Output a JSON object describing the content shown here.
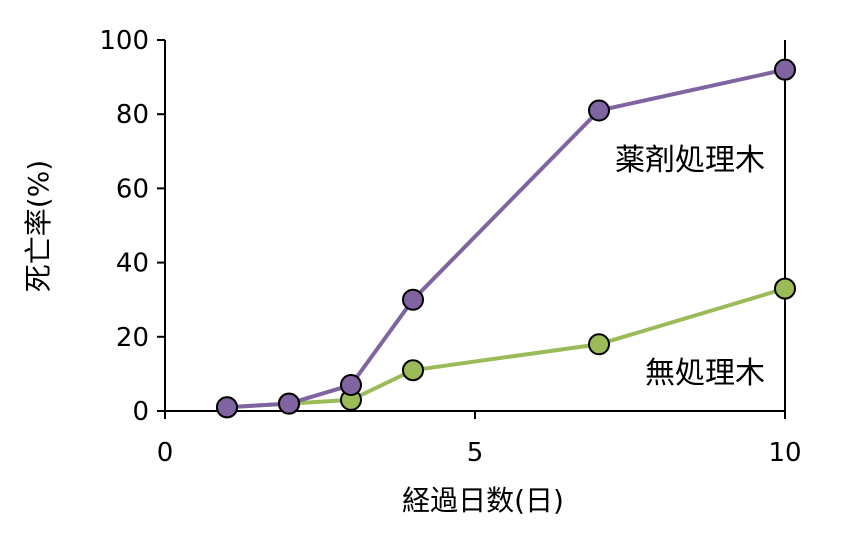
{
  "chart_data": {
    "type": "line",
    "xlabel": "経過日数(日)",
    "ylabel": "死亡率(%)",
    "xlim": [
      0,
      10
    ],
    "ylim": [
      0,
      100
    ],
    "x_ticks": [
      "0",
      "5",
      "10"
    ],
    "y_ticks": [
      "0",
      "20",
      "40",
      "60",
      "80",
      "100"
    ],
    "grid": false,
    "series": [
      {
        "name": "薬剤処理木",
        "color": "#8064a2",
        "x": [
          1,
          2,
          3,
          4,
          7,
          10
        ],
        "y": [
          1,
          2,
          7,
          30,
          81,
          92
        ]
      },
      {
        "name": "無処理木",
        "color": "#9bbb59",
        "x": [
          1,
          2,
          3,
          4,
          7,
          10
        ],
        "y": [
          1,
          2,
          3,
          11,
          18,
          33
        ]
      }
    ]
  }
}
